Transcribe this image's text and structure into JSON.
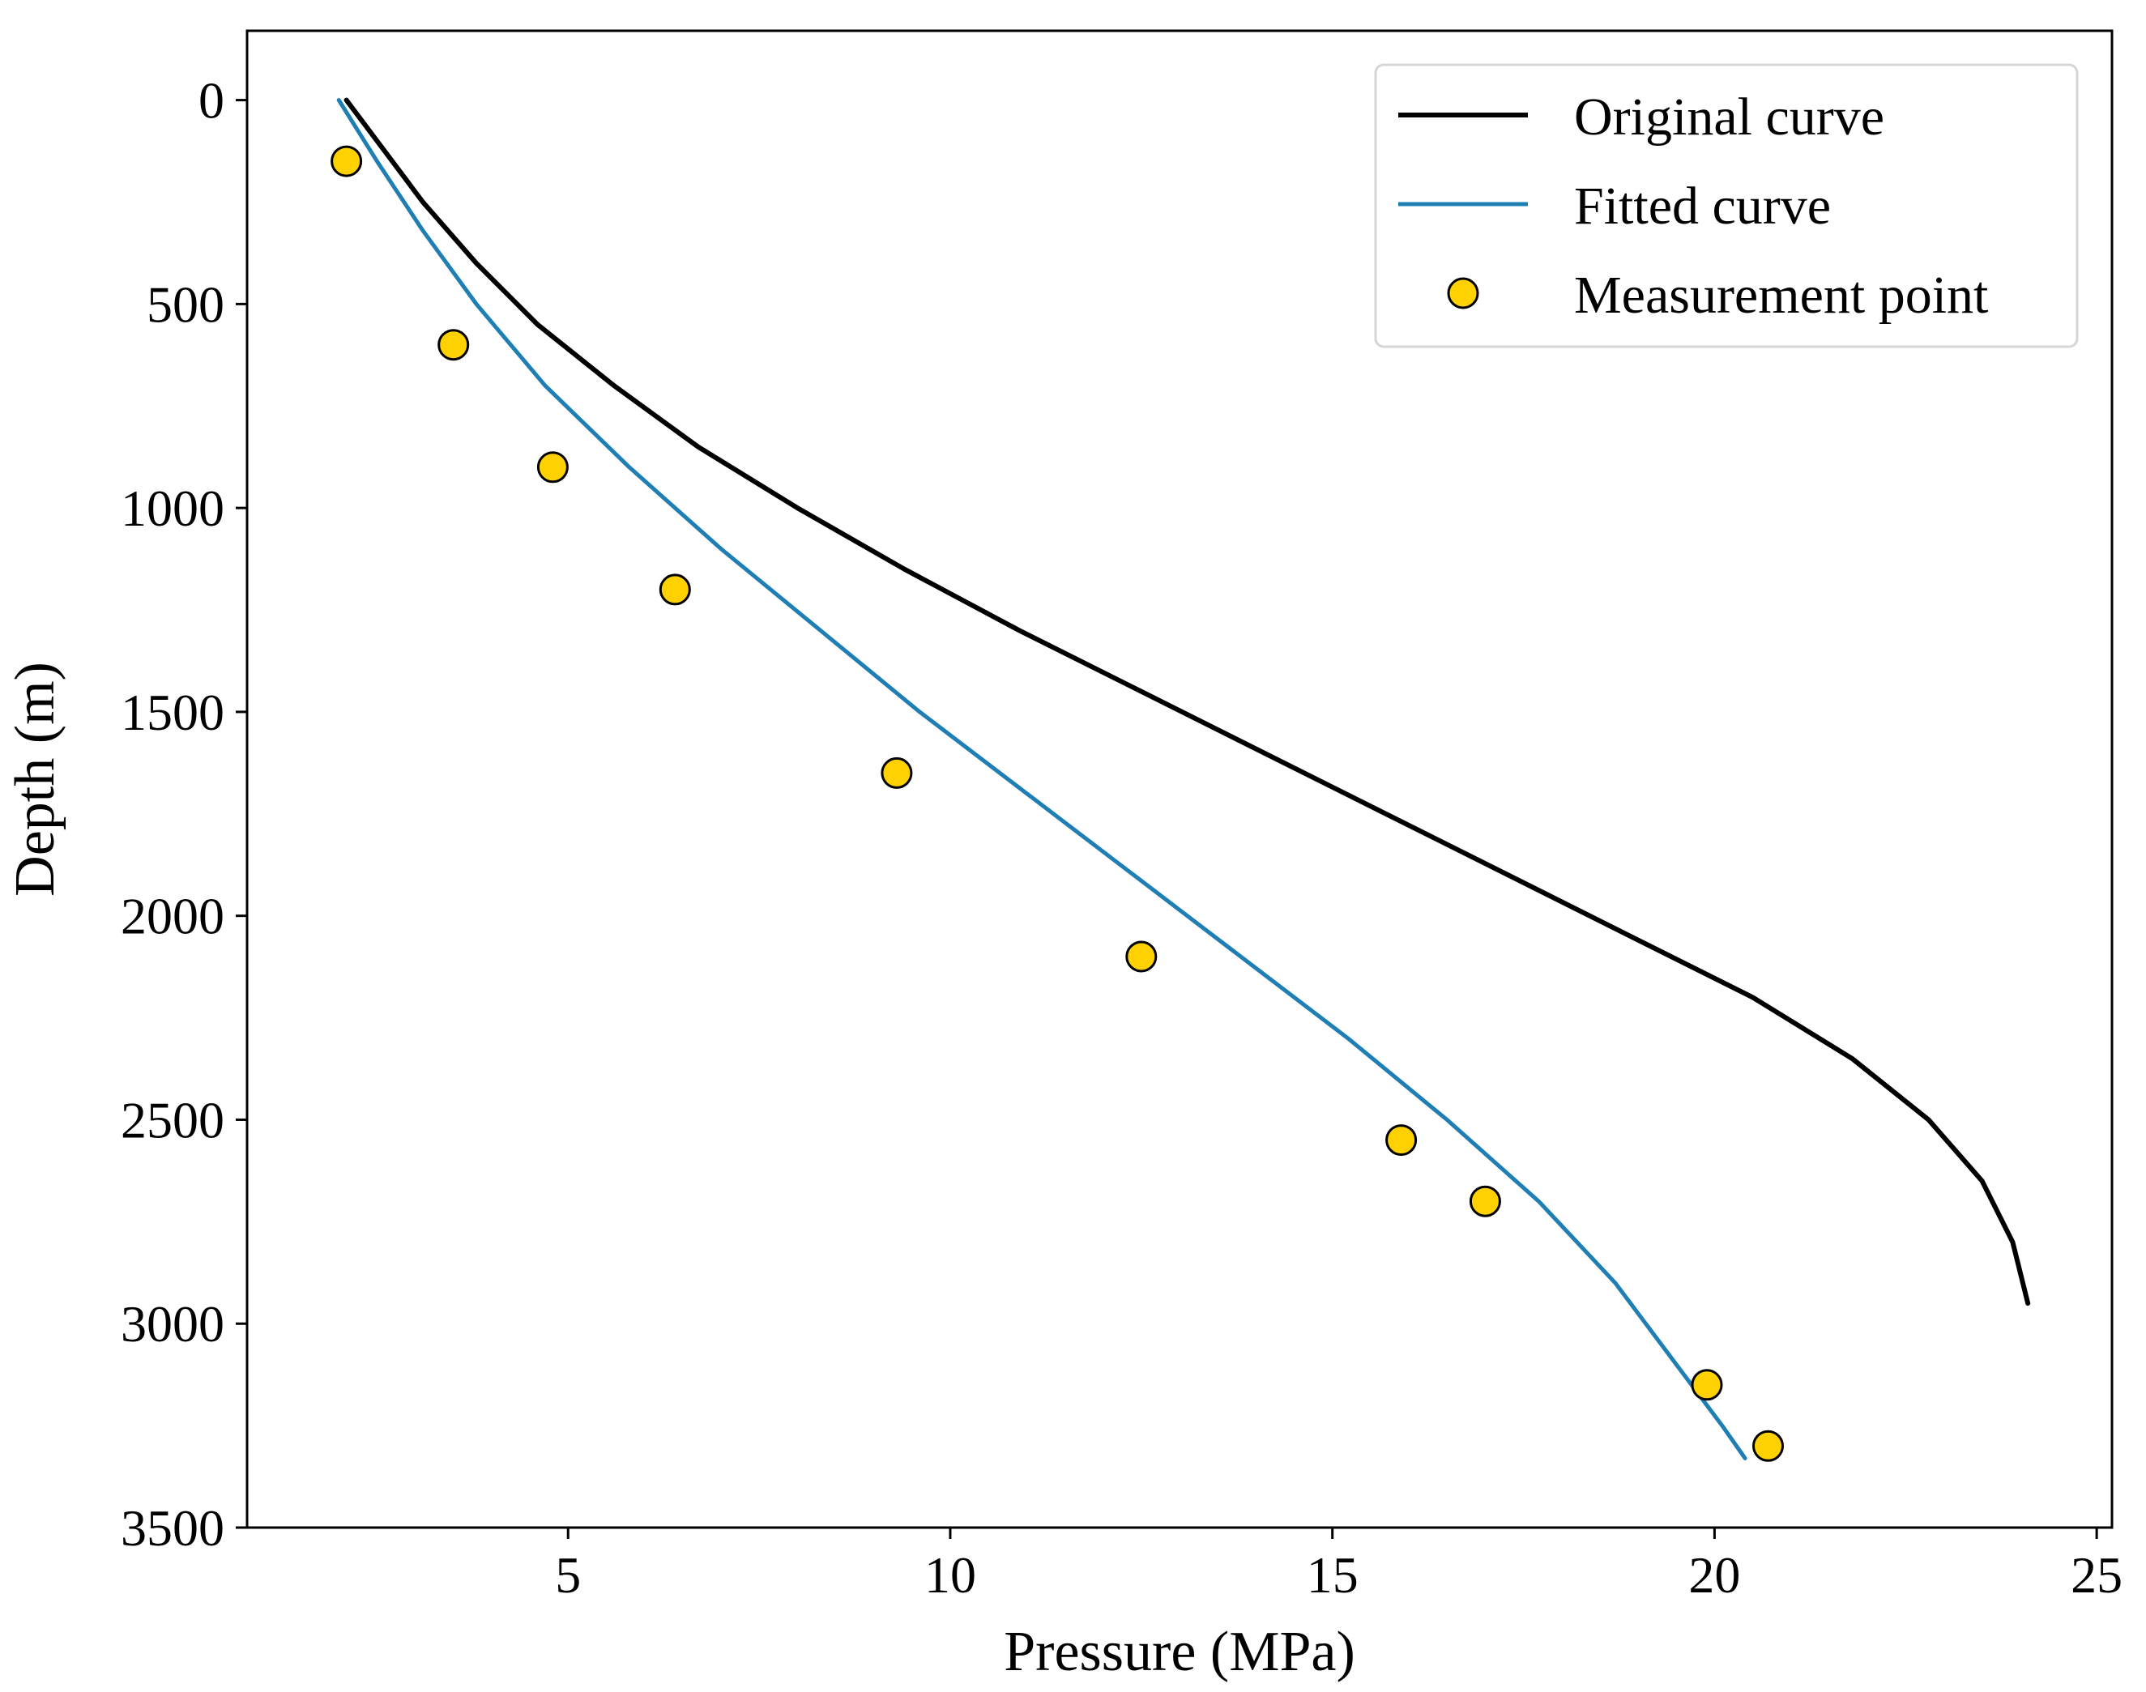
{
  "chart_data": {
    "type": "line",
    "title": "",
    "xlabel": "Pressure (MPa)",
    "ylabel": "Depth (m)",
    "xlim": [
      0.8,
      25.2
    ],
    "ylim": [
      3500,
      -170
    ],
    "y_inverted": true,
    "x_ticks": [
      5,
      10,
      15,
      20,
      25
    ],
    "y_ticks": [
      0,
      500,
      1000,
      1500,
      2000,
      2500,
      3000,
      3500
    ],
    "grid": false,
    "legend_position": "top-right",
    "series": [
      {
        "name": "Original curve",
        "kind": "line",
        "color": "#000000",
        "x": [
          2.1,
          2.5,
          3.1,
          3.8,
          4.6,
          5.6,
          6.7,
          8.0,
          9.4,
          10.9,
          12.5,
          14.1,
          15.7,
          17.3,
          18.9,
          20.5,
          21.8,
          22.8,
          23.5,
          23.9,
          24.1
        ],
        "y": [
          0,
          100,
          250,
          400,
          550,
          700,
          850,
          1000,
          1150,
          1300,
          1450,
          1600,
          1750,
          1900,
          2050,
          2200,
          2350,
          2500,
          2650,
          2800,
          2950
        ]
      },
      {
        "name": "Fitted curve",
        "kind": "line",
        "color": "#1f7fb4",
        "x": [
          2.0,
          2.5,
          3.1,
          3.8,
          4.7,
          5.8,
          7.0,
          8.3,
          9.6,
          11.0,
          12.4,
          13.8,
          15.2,
          16.5,
          17.7,
          18.7,
          19.5,
          20.1,
          20.4
        ],
        "y": [
          0,
          150,
          320,
          500,
          700,
          900,
          1100,
          1300,
          1500,
          1700,
          1900,
          2100,
          2300,
          2500,
          2700,
          2900,
          3100,
          3250,
          3330
        ]
      },
      {
        "name": "Measurement point",
        "kind": "scatter",
        "color": "#ffd100",
        "x": [
          2.1,
          3.5,
          4.8,
          6.4,
          9.3,
          12.5,
          15.9,
          17.0,
          19.9,
          20.7
        ],
        "y": [
          150,
          600,
          900,
          1200,
          1650,
          2100,
          2550,
          2700,
          3150,
          3300
        ]
      }
    ]
  }
}
